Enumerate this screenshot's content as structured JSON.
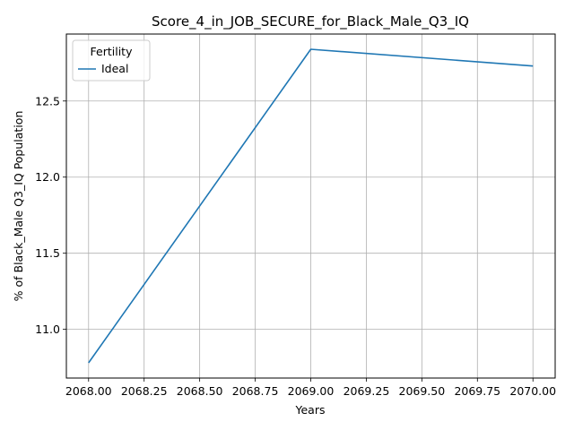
{
  "chart_data": {
    "type": "line",
    "title": "Score_4_in_JOB_SECURE_for_Black_Male_Q3_IQ",
    "xlabel": "Years",
    "ylabel": "% of Black_Male Q3_IQ Population",
    "x_ticks": [
      "2068.00",
      "2068.25",
      "2068.50",
      "2068.75",
      "2069.00",
      "2069.25",
      "2069.50",
      "2069.75",
      "2070.00"
    ],
    "y_ticks": [
      "11.0",
      "11.5",
      "12.0",
      "12.5"
    ],
    "xlim": [
      2067.9,
      2070.1
    ],
    "ylim": [
      10.68,
      12.94
    ],
    "grid": true,
    "legend": {
      "title": "Fertility",
      "placement": "top-left"
    },
    "series": [
      {
        "name": "Ideal",
        "color": "#1f77b4",
        "x": [
          2068,
          2069,
          2070
        ],
        "y": [
          10.78,
          12.84,
          12.73
        ]
      }
    ]
  }
}
